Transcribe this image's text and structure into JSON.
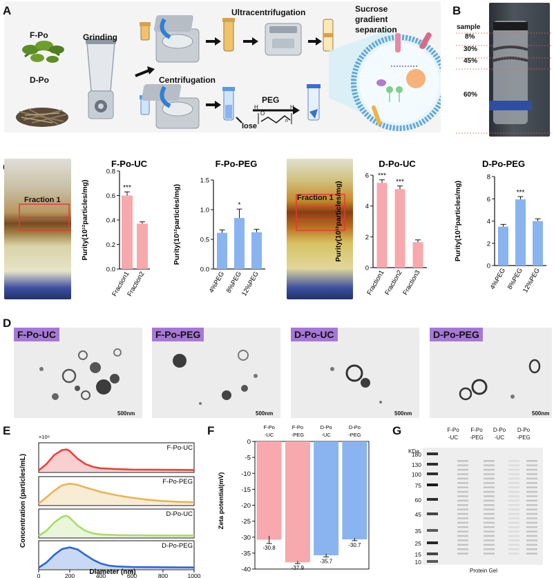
{
  "panels": {
    "A": "A",
    "B": "B",
    "C": "C",
    "D": "D",
    "E": "E",
    "F": "F",
    "G": "G"
  },
  "panelA": {
    "f_po": "F-Po",
    "d_po": "D-Po",
    "grinding": "Grinding",
    "ultracentrifugation": "Ultracentrifugation",
    "sucrose_line1": "Sucrose",
    "sucrose_line2": "gradient",
    "sucrose_line3": "separation",
    "centrifugation": "Centrifugation",
    "peg": "PEG",
    "lose": "lose",
    "chem_o": "O",
    "chem_h1": "H",
    "chem_h2": "H",
    "chem_n": "n"
  },
  "panelB": {
    "labels": [
      "sample",
      "8%",
      "30%",
      "45%",
      "60%"
    ]
  },
  "panelC": {
    "fraction_label": "Fraction 1",
    "sig_labels": [
      "***",
      "***",
      "*",
      "***",
      "***",
      "***"
    ]
  },
  "panelD": {
    "labels": [
      "F-Po-UC",
      "F-Po-PEG",
      "D-Po-UC",
      "D-Po-PEG"
    ],
    "scale": "500nm"
  },
  "panelG": {
    "cols": [
      "F-Po\n-UC",
      "F-Po\n-PEG",
      "D-Po\n-UC",
      "D-Po\n-PEG"
    ],
    "col_top": [
      "F-Po",
      "F-Po",
      "D-Po",
      "D-Po"
    ],
    "col_bot": [
      "-UC",
      "-PEG",
      "-UC",
      "-PEG"
    ],
    "kda": "KDa",
    "markers": [
      "180",
      "130",
      "100",
      "75",
      "60",
      "45",
      "35",
      "25",
      "15",
      "10"
    ],
    "caption": "Protein Gel"
  },
  "colors": {
    "pink": "#f7a9ad",
    "blue": "#8ab4f0",
    "red": "#e8413e",
    "orange": "#e9b454",
    "green": "#a7dc6a",
    "dblue": "#2767d9",
    "purple": "#a678d6"
  },
  "chart_data": [
    {
      "type": "bar",
      "title": "F-Po-UC",
      "ylabel": "Purity(10¹²particles/mg)",
      "categories": [
        "Fraction1",
        "Fraction2"
      ],
      "values": [
        0.6,
        0.37
      ],
      "errors": [
        0.03,
        0.015
      ],
      "sig": [
        "***",
        ""
      ],
      "ylim": [
        0,
        0.8
      ],
      "yticks": [
        "0.0",
        "0.2",
        "0.4",
        "0.6",
        "0.8"
      ],
      "color": "pink"
    },
    {
      "type": "bar",
      "title": "F-Po-PEG",
      "ylabel": "Purity(10¹²particles/mg)",
      "categories": [
        "4%PEG",
        "8%PEG",
        "12%PEG"
      ],
      "values": [
        0.61,
        0.86,
        0.62
      ],
      "errors": [
        0.05,
        0.15,
        0.05
      ],
      "sig": [
        "",
        "*",
        ""
      ],
      "ylim": [
        0,
        1.5
      ],
      "yticks": [
        "0.0",
        "0.5",
        "1.0",
        "1.5"
      ],
      "color": "blue"
    },
    {
      "type": "bar",
      "title": "D-Po-UC",
      "ylabel": "Purity(10¹²particles/mg)",
      "categories": [
        "Fraction1",
        "Fraction2",
        "Fraction3"
      ],
      "values": [
        5.5,
        5.1,
        1.65
      ],
      "errors": [
        0.2,
        0.2,
        0.15
      ],
      "sig": [
        "***",
        "***",
        ""
      ],
      "ylim": [
        0,
        6
      ],
      "yticks": [
        "0",
        "2",
        "4",
        "6"
      ],
      "color": "pink"
    },
    {
      "type": "bar",
      "title": "D-Po-PEG",
      "ylabel": "Purity(10¹²particles/mg)",
      "categories": [
        "4%PEG",
        "8%PEG",
        "12%PEG"
      ],
      "values": [
        3.5,
        5.95,
        4.0
      ],
      "errors": [
        0.2,
        0.25,
        0.2
      ],
      "sig": [
        "",
        "***",
        ""
      ],
      "ylim": [
        0,
        8
      ],
      "yticks": [
        "0",
        "2",
        "4",
        "6",
        "8"
      ],
      "color": "blue"
    },
    {
      "type": "line",
      "multiplier": "×10⁸",
      "ylabel": "Concentration (particles/mL)",
      "xlabel": "Diameter (nm)",
      "xlim": [
        0,
        1000
      ],
      "xticks": [
        "0",
        "200",
        "400",
        "600",
        "800",
        "1000"
      ],
      "series": [
        {
          "name": "F-Po-UC",
          "color": "red",
          "x": [
            0,
            50,
            100,
            150,
            180,
            200,
            250,
            300,
            350,
            400,
            500,
            600,
            800,
            1000
          ],
          "y": [
            0,
            0.3,
            0.72,
            0.95,
            0.98,
            0.9,
            0.55,
            0.3,
            0.16,
            0.1,
            0.06,
            0.04,
            0.03,
            0.02
          ]
        },
        {
          "name": "F-Po-PEG",
          "color": "orange",
          "x": [
            0,
            50,
            100,
            150,
            200,
            250,
            300,
            400,
            500,
            600,
            700,
            800,
            900,
            1000
          ],
          "y": [
            0,
            0.3,
            0.62,
            0.88,
            0.96,
            0.9,
            0.78,
            0.56,
            0.4,
            0.28,
            0.18,
            0.12,
            0.08,
            0.06
          ]
        },
        {
          "name": "D-Po-UC",
          "color": "green",
          "x": [
            0,
            50,
            100,
            150,
            180,
            200,
            250,
            300,
            350,
            400,
            500,
            600,
            800,
            1000
          ],
          "y": [
            0,
            0.25,
            0.65,
            0.92,
            0.98,
            0.88,
            0.5,
            0.25,
            0.12,
            0.07,
            0.04,
            0.03,
            0.02,
            0.02
          ]
        },
        {
          "name": "D-Po-PEG",
          "color": "dblue",
          "x": [
            0,
            50,
            100,
            150,
            200,
            250,
            300,
            350,
            400,
            450,
            500,
            600,
            800,
            1000
          ],
          "y": [
            0,
            0.25,
            0.62,
            0.9,
            0.98,
            0.88,
            0.62,
            0.38,
            0.2,
            0.1,
            0.06,
            0.03,
            0.02,
            0.01
          ]
        }
      ]
    },
    {
      "type": "bar",
      "ylabel": "Zeta potential(mV)",
      "categories": [
        "F-Po\n-UC",
        "F-Po\n-PEG",
        "D-Po\n-UC",
        "D-Po\n-PEG"
      ],
      "cat_top": [
        "F-Po",
        "F-Po",
        "D-Po",
        "D-Po"
      ],
      "cat_bot": [
        "-UC",
        "-PEG",
        "-UC",
        "-PEG"
      ],
      "values": [
        -30.8,
        -37.9,
        -35.7,
        -30.7
      ],
      "value_labels": [
        "-30.8",
        "-37.9",
        "-35.7",
        "-30.7"
      ],
      "errors": [
        1.2,
        0.4,
        0.5,
        0.4
      ],
      "ylim": [
        -40,
        0
      ],
      "yticks": [
        "0",
        "-5",
        "-10",
        "-15",
        "-20",
        "-25",
        "-30",
        "-35",
        "-40"
      ],
      "colors": [
        "pink",
        "pink",
        "blue",
        "blue"
      ]
    }
  ]
}
